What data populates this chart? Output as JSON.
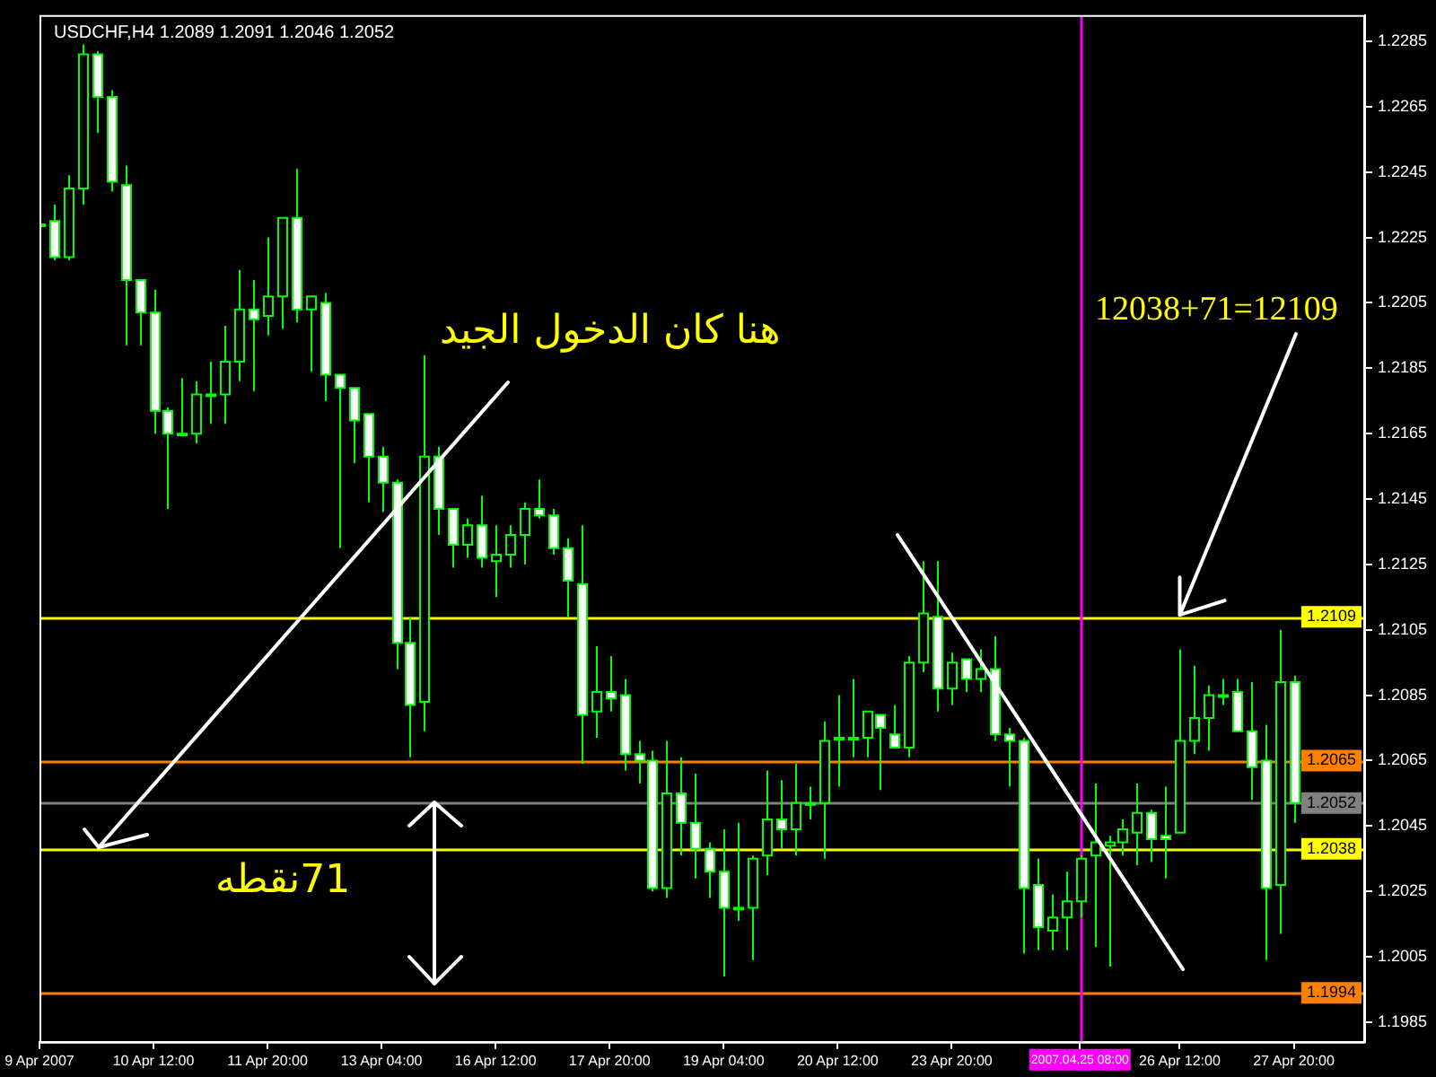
{
  "chart_data": {
    "type": "candlestick",
    "title": "USDCHF,H4 1.2089 1.2091 1.2046 1.2052",
    "categories": [
      "9 Apr 2007",
      null,
      null,
      null,
      null,
      null,
      null,
      null,
      "10 Apr 12:00",
      null,
      null,
      null,
      null,
      null,
      null,
      null,
      "11 Apr 20:00",
      null,
      null,
      null,
      null,
      null,
      null,
      null,
      "13 Apr 04:00",
      null,
      null,
      null,
      null,
      null,
      null,
      null,
      "16 Apr 12:00",
      null,
      null,
      null,
      null,
      null,
      null,
      null,
      "17 Apr 20:00",
      null,
      null,
      null,
      null,
      null,
      null,
      null,
      "19 Apr 04:00",
      null,
      null,
      null,
      null,
      null,
      null,
      null,
      "20 Apr 12:00",
      null,
      null,
      null,
      null,
      null,
      null,
      null,
      "23 Apr 20:00",
      null,
      null,
      null,
      null,
      null,
      null,
      null,
      null,
      "2007.04.25 08:00",
      null,
      null,
      null,
      null,
      null,
      null,
      "26 Apr 12:00",
      null,
      null,
      null,
      null,
      null,
      null,
      null,
      "27 Apr 20:00",
      null,
      null,
      null,
      null,
      null
    ],
    "color": "#00ff00",
    "colors": [
      "#00ff00",
      "#ffffff",
      "#000000",
      "#000000",
      "#ffffff",
      "#ffffff",
      "#ffffff",
      "#ffffff",
      "#ffffff",
      "#ffffff",
      "#00ff00",
      "#000000",
      "#00ff00",
      "#000000",
      "#000000",
      "#ffffff",
      "#000000",
      "#000000",
      "#ffffff",
      "#000000",
      "#ffffff",
      "#ffffff",
      "#ffffff",
      "#ffffff",
      "#ffffff",
      "#ffffff",
      "#ffffff",
      "#000000",
      "#ffffff",
      "#ffffff",
      "#000000",
      "#ffffff",
      "#000000",
      "#000000",
      "#000000",
      "#ffffff",
      "#ffffff",
      "#ffffff",
      "#ffffff",
      "#000000",
      "#ffffff",
      "#ffffff",
      "#ffffff",
      "#ffffff",
      "#000000",
      "#ffffff",
      "#ffffff",
      "#ffffff",
      "#ffffff",
      "#00ff00",
      "#000000",
      "#000000",
      "#ffffff",
      "#000000",
      "#00ff00",
      "#000000",
      "#00ff00",
      "#00ff00",
      "#000000",
      "#ffffff",
      "#ffffff",
      "#000000",
      "#000000",
      "#ffffff",
      "#000000",
      "#ffffff",
      "#000000",
      "#ffffff",
      "#ffffff",
      "#ffffff",
      "#ffffff",
      "#000000",
      "#000000",
      "#000000",
      "#000000",
      "#000000",
      "#000000",
      "#000000",
      "#ffffff",
      "#ffffff",
      "#000000",
      "#000000",
      "#000000",
      "#00ff00",
      "#ffffff",
      "#ffffff",
      "#ffffff",
      "#000000",
      "#ffffff",
      null,
      null,
      null,
      null,
      null
    ],
    "ohlc": [
      [
        1.2229,
        1.2231,
        1.2227,
        1.2229
      ],
      [
        1.223,
        1.2235,
        1.2218,
        1.2219
      ],
      [
        1.2219,
        1.2244,
        1.2218,
        1.224
      ],
      [
        1.224,
        1.2284,
        1.2235,
        1.2281
      ],
      [
        1.2281,
        1.2282,
        1.2257,
        1.2268
      ],
      [
        1.2268,
        1.227,
        1.2239,
        1.2242
      ],
      [
        1.2241,
        1.2247,
        1.2192,
        1.2212
      ],
      [
        1.2212,
        1.2212,
        1.2192,
        1.2202
      ],
      [
        1.2202,
        1.2209,
        1.2165,
        1.2172
      ],
      [
        1.2172,
        1.2173,
        1.2142,
        1.2165
      ],
      [
        1.2165,
        1.2182,
        1.2165,
        1.2165
      ],
      [
        1.2165,
        1.2181,
        1.2162,
        1.2177
      ],
      [
        1.2177,
        1.2187,
        1.2168,
        1.2177
      ],
      [
        1.2177,
        1.2198,
        1.2168,
        1.2187
      ],
      [
        1.2187,
        1.2215,
        1.2181,
        1.2203
      ],
      [
        1.2203,
        1.2212,
        1.2178,
        1.22
      ],
      [
        1.2201,
        1.2225,
        1.2195,
        1.2207
      ],
      [
        1.2207,
        1.2231,
        1.2197,
        1.2231
      ],
      [
        1.2231,
        1.2246,
        1.2199,
        1.2203
      ],
      [
        1.2203,
        1.2207,
        1.2184,
        1.2207
      ],
      [
        1.2205,
        1.2208,
        1.2175,
        1.2183
      ],
      [
        1.2183,
        1.2183,
        1.213,
        1.2179
      ],
      [
        1.2179,
        1.2179,
        1.2156,
        1.2169
      ],
      [
        1.2171,
        1.2171,
        1.2144,
        1.2158
      ],
      [
        1.2158,
        1.2161,
        1.2141,
        1.215
      ],
      [
        1.215,
        1.2151,
        1.2093,
        1.2101
      ],
      [
        1.2101,
        1.2109,
        1.2066,
        1.2082
      ],
      [
        1.2083,
        1.2189,
        1.2074,
        1.2158
      ],
      [
        1.2158,
        1.2161,
        1.2134,
        1.2142
      ],
      [
        1.2142,
        1.2142,
        1.2124,
        1.2131
      ],
      [
        1.2131,
        1.2139,
        1.2127,
        1.2137
      ],
      [
        1.2137,
        1.2146,
        1.2124,
        1.2127
      ],
      [
        1.2126,
        1.2137,
        1.2115,
        1.2128
      ],
      [
        1.2128,
        1.2137,
        1.2124,
        1.2134
      ],
      [
        1.2134,
        1.2144,
        1.2125,
        1.2142
      ],
      [
        1.2142,
        1.2151,
        1.2139,
        1.214
      ],
      [
        1.214,
        1.2142,
        1.2128,
        1.213
      ],
      [
        1.213,
        1.2133,
        1.2109,
        1.212
      ],
      [
        1.2119,
        1.2137,
        1.2064,
        1.2079
      ],
      [
        1.208,
        1.21,
        1.2072,
        1.2086
      ],
      [
        1.2086,
        1.2097,
        1.208,
        1.2084
      ],
      [
        1.2085,
        1.209,
        1.2062,
        1.2067
      ],
      [
        1.2067,
        1.2071,
        1.2058,
        1.2065
      ],
      [
        1.2065,
        1.2068,
        1.2025,
        1.2026
      ],
      [
        1.2026,
        1.2071,
        1.2023,
        1.2055
      ],
      [
        1.2055,
        1.2066,
        1.2036,
        1.2046
      ],
      [
        1.2046,
        1.2061,
        1.2029,
        1.2038
      ],
      [
        1.2038,
        1.204,
        1.2023,
        1.2031
      ],
      [
        1.2031,
        1.2044,
        1.1999,
        1.202
      ],
      [
        1.202,
        1.2046,
        1.2016,
        1.202
      ],
      [
        1.202,
        1.2036,
        1.2004,
        1.2035
      ],
      [
        1.2036,
        1.2062,
        1.203,
        1.2047
      ],
      [
        1.2047,
        1.2059,
        1.2038,
        1.2044
      ],
      [
        1.2044,
        1.2064,
        1.2036,
        1.2052
      ],
      [
        1.2052,
        1.2057,
        1.2047,
        1.2052
      ],
      [
        1.2052,
        1.2077,
        1.2035,
        1.2071
      ],
      [
        1.2072,
        1.2085,
        1.2057,
        1.2072
      ],
      [
        1.2072,
        1.209,
        1.2066,
        1.2072
      ],
      [
        1.2072,
        1.208,
        1.2066,
        1.208
      ],
      [
        1.2079,
        1.2079,
        1.2056,
        1.2075
      ],
      [
        1.2073,
        1.2082,
        1.2069,
        1.2069
      ],
      [
        1.2069,
        1.2097,
        1.2066,
        1.2095
      ],
      [
        1.2095,
        1.2126,
        1.2092,
        1.211
      ],
      [
        1.2109,
        1.2126,
        1.208,
        1.2087
      ],
      [
        1.2087,
        1.2098,
        1.2082,
        1.2095
      ],
      [
        1.2096,
        1.2096,
        1.2086,
        1.209
      ],
      [
        1.209,
        1.2099,
        1.2086,
        1.2093
      ],
      [
        1.2093,
        1.2103,
        1.2071,
        1.2073
      ],
      [
        1.2073,
        1.2075,
        1.2057,
        1.2071
      ],
      [
        1.2071,
        1.2072,
        1.2006,
        1.2026
      ],
      [
        1.2027,
        1.2035,
        1.2007,
        1.2014
      ],
      [
        1.2013,
        1.2024,
        1.2007,
        1.2017
      ],
      [
        1.2017,
        1.2031,
        1.2007,
        1.2022
      ],
      [
        1.2022,
        1.2036,
        1.2017,
        1.2035
      ],
      [
        1.2036,
        1.2058,
        1.2008,
        1.204
      ],
      [
        1.2039,
        1.2042,
        1.2002,
        1.204
      ],
      [
        1.204,
        1.2047,
        1.2036,
        1.2044
      ],
      [
        1.2043,
        1.2058,
        1.2033,
        1.2049
      ],
      [
        1.2049,
        1.205,
        1.2034,
        1.2041
      ],
      [
        1.2042,
        1.2057,
        1.2029,
        1.2041
      ],
      [
        1.2043,
        1.2099,
        1.2043,
        1.2071
      ],
      [
        1.2071,
        1.2094,
        1.2067,
        1.2078
      ],
      [
        1.2078,
        1.2088,
        1.2068,
        1.2085
      ],
      [
        1.2085,
        1.209,
        1.2082,
        1.2085
      ],
      [
        1.2086,
        1.209,
        1.2074,
        1.2074
      ],
      [
        1.2074,
        1.2089,
        1.2053,
        1.2063
      ],
      [
        1.2065,
        1.2076,
        1.2004,
        1.2026
      ],
      [
        1.2027,
        1.2105,
        1.2012,
        1.2089
      ],
      [
        1.2089,
        1.2091,
        1.2046,
        1.2052
      ],
      null,
      null,
      null,
      null,
      null
    ],
    "ylim": [
      1.1979,
      1.2293
    ],
    "yticks": [
      1.1985,
      1.2005,
      1.2025,
      1.2045,
      1.2065,
      1.2085,
      1.2105,
      1.2125,
      1.2145,
      1.2165,
      1.2185,
      1.2205,
      1.2225,
      1.2245,
      1.2265,
      1.2285
    ],
    "ref_lines": [
      {
        "axis": "y",
        "value": 1.2109,
        "label": "1.2109",
        "color": "#ffff00"
      },
      {
        "axis": "y",
        "value": 1.2065,
        "label": "1.2065",
        "color": "#ff8000"
      },
      {
        "axis": "y",
        "value": 1.2052,
        "label": "1.2052",
        "color": "#808080"
      },
      {
        "axis": "y",
        "value": 1.2038,
        "label": "1.2038",
        "color": "#ffff00"
      },
      {
        "axis": "y",
        "value": 1.1994,
        "label": "1.1994",
        "color": "#ff8000"
      },
      {
        "axis": "x",
        "value": "2007.04.25 08:00",
        "color": "#ff00ff"
      }
    ],
    "annotations": [
      "هنا كان الدخول الجيد",
      "71نقطه",
      {
        "text": "12038+71=12109",
        "x": "26 Apr 12:00",
        "y": 1.2109
      }
    ],
    "grid": false,
    "legend": false
  }
}
